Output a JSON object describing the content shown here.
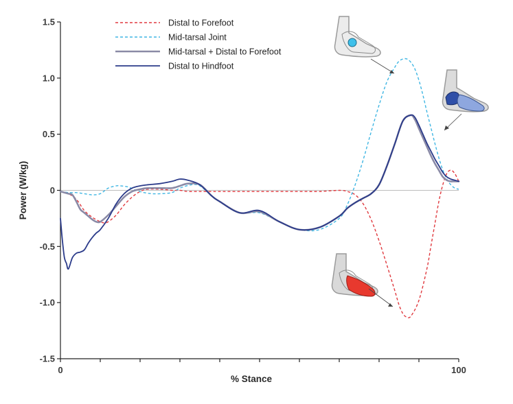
{
  "chart_data": {
    "type": "line",
    "title": "",
    "xlabel": "% Stance",
    "ylabel": "Power (W/kg)",
    "xlim": [
      0,
      100
    ],
    "ylim": [
      -1.5,
      1.5
    ],
    "x_ticks": [
      0,
      10,
      20,
      30,
      40,
      50,
      60,
      70,
      80,
      90,
      100
    ],
    "x_tick_labels": [
      "0",
      "100"
    ],
    "y_ticks": [
      -1.5,
      -1.0,
      -0.5,
      0,
      0.5,
      1.0,
      1.5
    ],
    "y_tick_labels": [
      "-1.5",
      "-1.0",
      "-0.5",
      "0",
      "0.5",
      "1.0",
      "1.5"
    ],
    "zero_line": true,
    "legend_position": "top-center",
    "series": [
      {
        "name": "Distal to Forefoot",
        "color": "#e0393e",
        "dash": "dashed",
        "x": [
          0,
          2,
          4,
          6,
          8,
          10,
          11,
          12,
          14,
          16,
          18,
          20,
          22,
          25,
          28,
          30,
          32,
          35,
          38,
          40,
          45,
          50,
          55,
          60,
          65,
          70,
          72,
          74,
          76,
          78,
          80,
          82,
          84,
          85,
          86,
          87,
          88,
          90,
          92,
          93,
          94,
          95,
          96,
          97,
          98,
          99,
          100
        ],
        "y": [
          -0.01,
          -0.03,
          -0.08,
          -0.18,
          -0.24,
          -0.28,
          -0.29,
          -0.28,
          -0.22,
          -0.13,
          -0.06,
          -0.01,
          0.01,
          0.01,
          0.0,
          0.0,
          -0.01,
          -0.01,
          -0.01,
          -0.01,
          -0.01,
          -0.01,
          -0.01,
          -0.01,
          -0.01,
          0.0,
          -0.01,
          -0.04,
          -0.12,
          -0.26,
          -0.45,
          -0.67,
          -0.9,
          -1.02,
          -1.1,
          -1.13,
          -1.12,
          -0.98,
          -0.7,
          -0.5,
          -0.3,
          -0.1,
          0.05,
          0.15,
          0.18,
          0.15,
          0.08
        ]
      },
      {
        "name": "Mid-tarsal Joint",
        "color": "#3fb6e3",
        "dash": "dashed",
        "x": [
          0,
          2,
          4,
          6,
          8,
          10,
          12,
          14,
          15,
          17,
          19,
          21,
          23,
          25,
          28,
          30,
          33,
          35,
          38,
          40,
          45,
          50,
          55,
          60,
          65,
          70,
          72,
          74,
          76,
          78,
          80,
          82,
          84,
          85,
          86,
          87,
          88,
          89,
          90,
          91,
          92,
          93,
          94,
          95,
          96,
          97,
          98,
          99,
          100
        ],
        "y": [
          -0.01,
          -0.02,
          -0.02,
          -0.03,
          -0.04,
          -0.03,
          0.02,
          0.04,
          0.04,
          0.03,
          0.0,
          -0.02,
          -0.03,
          -0.03,
          -0.02,
          0.02,
          0.05,
          0.04,
          -0.05,
          -0.1,
          -0.2,
          -0.2,
          -0.28,
          -0.35,
          -0.35,
          -0.25,
          -0.13,
          0.05,
          0.27,
          0.52,
          0.76,
          0.97,
          1.1,
          1.15,
          1.17,
          1.17,
          1.14,
          1.08,
          0.98,
          0.85,
          0.7,
          0.56,
          0.42,
          0.29,
          0.18,
          0.1,
          0.05,
          0.02,
          0.01
        ]
      },
      {
        "name": "Mid-tarsal + Distal to Forefoot",
        "color": "#8a8aa6",
        "dash": "solid",
        "x": [
          0,
          2,
          3,
          4,
          5,
          6,
          7,
          8,
          9,
          10,
          12,
          14,
          16,
          18,
          20,
          22,
          25,
          28,
          30,
          32,
          35,
          38,
          40,
          45,
          50,
          55,
          60,
          65,
          70,
          72,
          74,
          76,
          78,
          80,
          82,
          84,
          86,
          88,
          89,
          90,
          91,
          92,
          93,
          94,
          95,
          96,
          97,
          98,
          99,
          100
        ],
        "y": [
          -0.01,
          -0.03,
          -0.04,
          -0.1,
          -0.17,
          -0.2,
          -0.23,
          -0.26,
          -0.28,
          -0.28,
          -0.22,
          -0.14,
          -0.06,
          -0.01,
          0.01,
          0.02,
          0.02,
          0.02,
          0.04,
          0.06,
          0.05,
          -0.05,
          -0.1,
          -0.2,
          -0.19,
          -0.28,
          -0.35,
          -0.33,
          -0.23,
          -0.16,
          -0.11,
          -0.07,
          -0.03,
          0.05,
          0.22,
          0.42,
          0.62,
          0.67,
          0.63,
          0.55,
          0.47,
          0.39,
          0.31,
          0.24,
          0.18,
          0.12,
          0.09,
          0.08,
          0.08,
          0.08
        ]
      },
      {
        "name": "Distal to Hindfoot",
        "color": "#2b3b8a",
        "dash": "solid",
        "x": [
          0,
          0.5,
          1,
          1.5,
          2,
          3,
          4,
          5,
          6,
          7,
          8,
          9,
          10,
          12,
          14,
          16,
          18,
          20,
          22,
          25,
          28,
          30,
          32,
          35,
          38,
          40,
          45,
          50,
          55,
          60,
          65,
          70,
          72,
          74,
          76,
          78,
          80,
          82,
          84,
          86,
          88,
          89,
          90,
          91,
          92,
          93,
          94,
          95,
          96,
          97,
          98,
          99,
          100
        ],
        "y": [
          -0.25,
          -0.45,
          -0.6,
          -0.65,
          -0.7,
          -0.6,
          -0.56,
          -0.55,
          -0.53,
          -0.47,
          -0.42,
          -0.38,
          -0.35,
          -0.25,
          -0.12,
          -0.03,
          0.02,
          0.04,
          0.05,
          0.06,
          0.08,
          0.1,
          0.09,
          0.05,
          -0.05,
          -0.1,
          -0.2,
          -0.18,
          -0.28,
          -0.35,
          -0.33,
          -0.23,
          -0.16,
          -0.11,
          -0.07,
          -0.03,
          0.05,
          0.22,
          0.42,
          0.62,
          0.67,
          0.65,
          0.58,
          0.5,
          0.42,
          0.35,
          0.28,
          0.22,
          0.16,
          0.12,
          0.1,
          0.09,
          0.08
        ]
      }
    ]
  }
}
